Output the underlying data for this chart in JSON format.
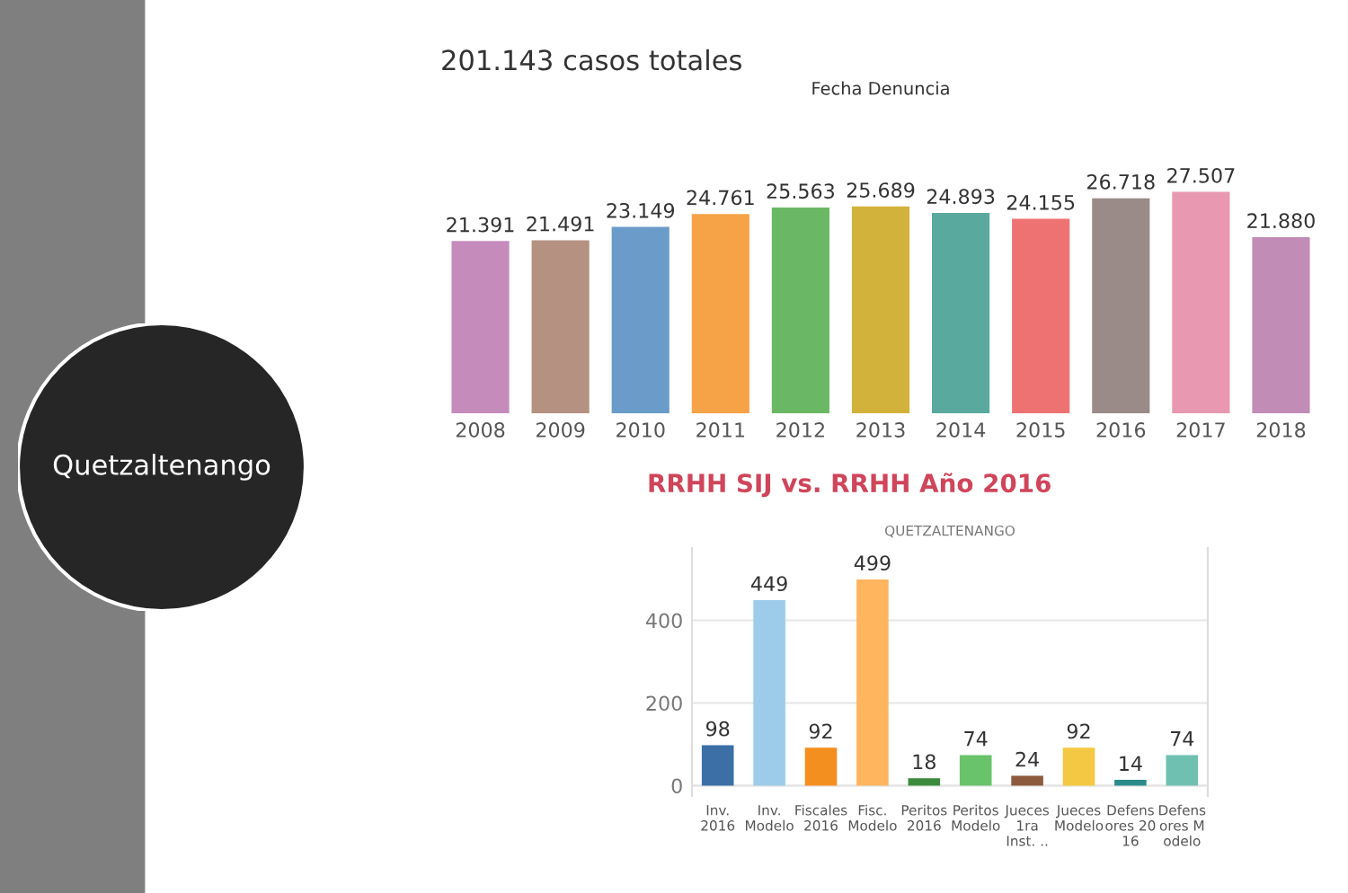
{
  "chart_data": [
    {
      "type": "other",
      "annotations": [
        "Quetzaltenango"
      ]
    },
    {
      "type": "bar",
      "title": "201.143 casos totales",
      "subtitle": "Fecha Denuncia",
      "categories": [
        "2008",
        "2009",
        "2010",
        "2011",
        "2012",
        "2013",
        "2014",
        "2015",
        "2016",
        "2017",
        "2018"
      ],
      "values": [
        21391,
        21491,
        23149,
        24761,
        25563,
        25689,
        24893,
        24155,
        26718,
        27507,
        21880
      ],
      "value_labels": [
        "21.391",
        "21.491",
        "23.149",
        "24.761",
        "25.563",
        "25.689",
        "24.893",
        "24.155",
        "26.718",
        "27.507",
        "21.880"
      ],
      "colors": [
        "#c48bbb",
        "#b49180",
        "#6a9bc9",
        "#f6a347",
        "#6ab866",
        "#d3b23c",
        "#5aa99f",
        "#ef7272",
        "#9a8b88",
        "#e899b1",
        "#c18db6"
      ],
      "tick_labels": "x",
      "grid": false
    },
    {
      "type": "bar",
      "title": "RRHH SIJ vs. RRHH Año 2016",
      "subtitle": "QUETZALTENANGO",
      "categories": [
        "Inv.\n2016",
        "Inv.\nModelo",
        "Fiscales\n2016",
        "Fisc.\nModelo",
        "Peritos\n2016",
        "Peritos\nModelo",
        "Jueces\n1ra\nInst. ..",
        "Jueces\nModelo",
        "Defens\nores 20\n16",
        "Defens\nores M\nodelo"
      ],
      "values": [
        98,
        449,
        92,
        499,
        18,
        74,
        24,
        92,
        14,
        74
      ],
      "data_labels": true,
      "colors": [
        "#3b6fa6",
        "#9dcbea",
        "#f38f1f",
        "#ffb45e",
        "#3c8a3d",
        "#68c36b",
        "#8c5a3c",
        "#f4c843",
        "#2b8b8b",
        "#70c0b1"
      ],
      "ylim": [
        -25,
        575
      ],
      "yticks": [
        0,
        200,
        400
      ],
      "grid": "y"
    }
  ]
}
